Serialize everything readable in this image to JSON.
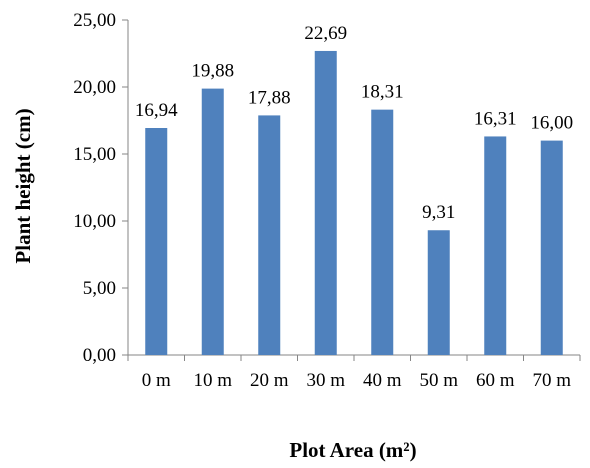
{
  "chart_data": {
    "type": "bar",
    "categories": [
      "0 m",
      "10 m",
      "20 m",
      "30 m",
      "40 m",
      "50 m",
      "60 m",
      "70 m"
    ],
    "values": [
      16.94,
      19.88,
      17.88,
      22.69,
      18.31,
      9.31,
      16.31,
      16.0
    ],
    "data_labels": [
      "16,94",
      "19,88",
      "17,88",
      "22,69",
      "18,31",
      "9,31",
      "16,31",
      "16,00"
    ],
    "title": "",
    "xlabel": "Plot Area (m²)",
    "ylabel": "Plant height (cm)",
    "ylim": [
      0,
      25
    ],
    "y_ticks": [
      0,
      5,
      10,
      15,
      20,
      25
    ],
    "y_tick_labels": [
      "0,00",
      "5,00",
      "10,00",
      "15,00",
      "20,00",
      "25,00"
    ],
    "grid": false,
    "legend": "none",
    "bar_color": "#4F81BD"
  }
}
